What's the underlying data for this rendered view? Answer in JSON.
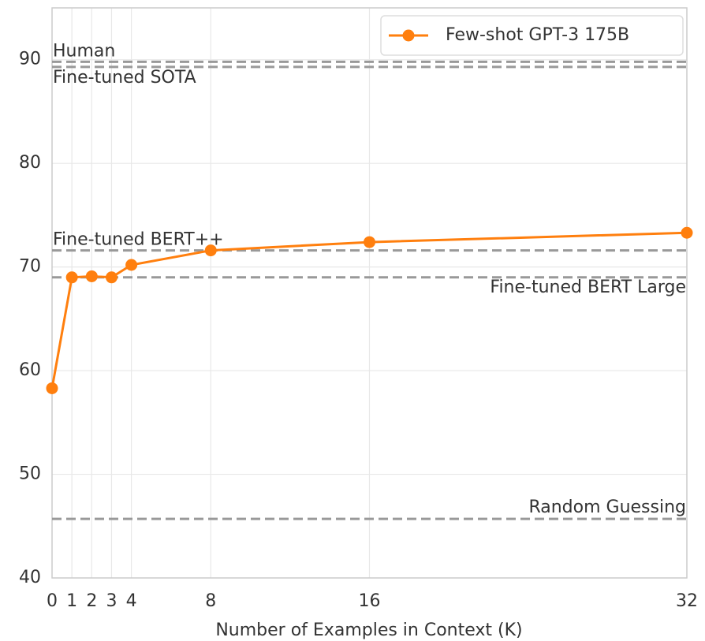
{
  "chart_data": {
    "type": "line",
    "x": [
      0,
      1,
      2,
      3,
      4,
      8,
      16,
      32
    ],
    "series": [
      {
        "name": "Few-shot GPT-3 175B",
        "color": "#ff7f0e",
        "values": [
          58.3,
          69.0,
          69.1,
          69.0,
          70.2,
          71.6,
          72.4,
          73.3
        ]
      }
    ],
    "reference_lines": [
      {
        "label": "Human",
        "value": 89.8
      },
      {
        "label": "Fine-tuned SOTA",
        "value": 89.3
      },
      {
        "label": "Fine-tuned BERT++",
        "value": 71.6
      },
      {
        "label": "Fine-tuned BERT Large",
        "value": 69.0
      },
      {
        "label": "Random Guessing",
        "value": 45.7
      }
    ],
    "x_label": "Number of Examples in Context (K)",
    "xlim": [
      0,
      32
    ],
    "xticks": [
      0,
      1,
      2,
      3,
      4,
      8,
      16,
      32
    ],
    "ylim": [
      40,
      95
    ],
    "yticks": [
      40,
      50,
      60,
      70,
      80,
      90
    ],
    "grid": true,
    "legend": "upper right"
  }
}
